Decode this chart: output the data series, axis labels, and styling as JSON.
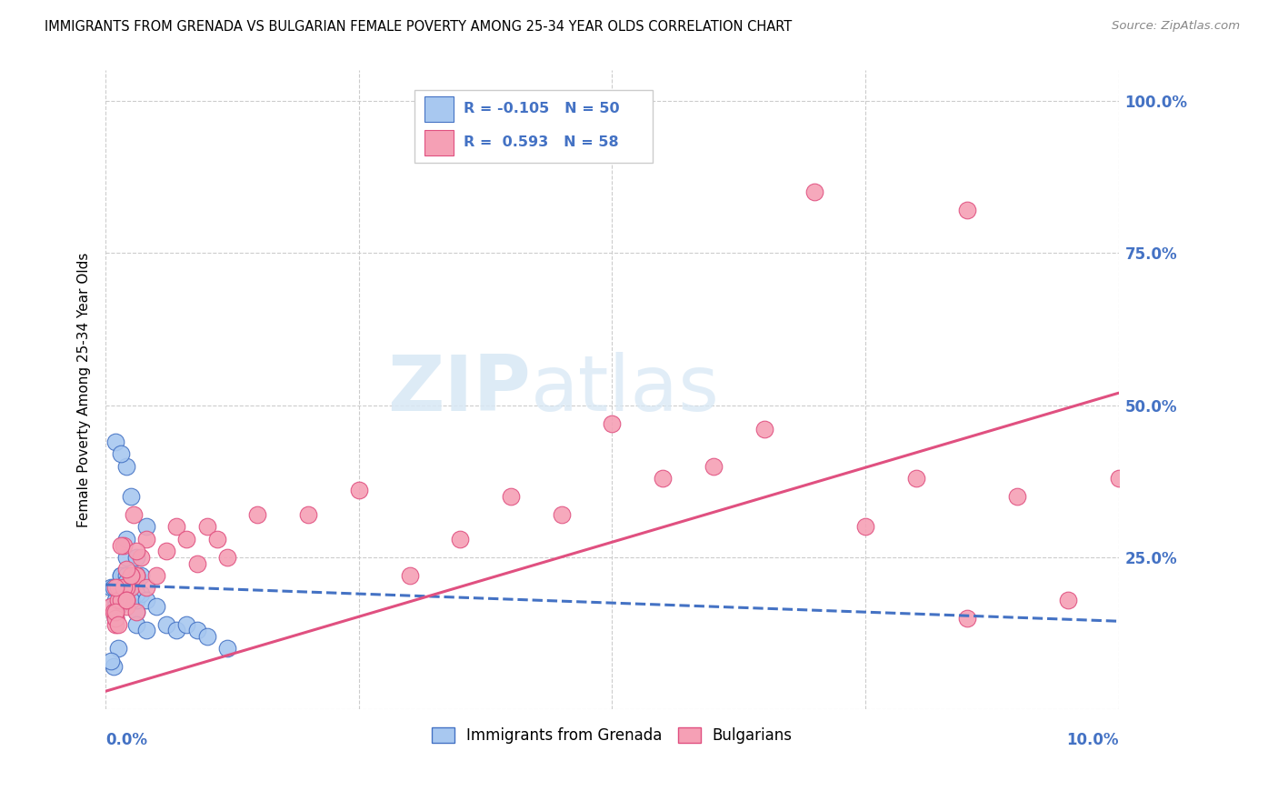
{
  "title": "IMMIGRANTS FROM GRENADA VS BULGARIAN FEMALE POVERTY AMONG 25-34 YEAR OLDS CORRELATION CHART",
  "source": "Source: ZipAtlas.com",
  "ylabel": "Female Poverty Among 25-34 Year Olds",
  "ytick_labels": [
    "",
    "25.0%",
    "50.0%",
    "75.0%",
    "100.0%"
  ],
  "ytick_values": [
    0.0,
    0.25,
    0.5,
    0.75,
    1.0
  ],
  "xlim": [
    0.0,
    0.1
  ],
  "ylim": [
    0.0,
    1.05
  ],
  "legend1_label": "Immigrants from Grenada",
  "legend2_label": "Bulgarians",
  "R1": -0.105,
  "N1": 50,
  "R2": 0.593,
  "N2": 58,
  "color_blue": "#A8C8F0",
  "color_pink": "#F5A0B5",
  "color_blue_line": "#4472C4",
  "color_pink_line": "#E05080",
  "watermark_zip": "ZIP",
  "watermark_atlas": "atlas",
  "blue_line_x": [
    0.0,
    0.1
  ],
  "blue_line_y": [
    0.205,
    0.145
  ],
  "pink_line_x": [
    0.0,
    0.1
  ],
  "pink_line_y": [
    0.03,
    0.52
  ],
  "blue_scatter_x": [
    0.0005,
    0.001,
    0.0015,
    0.001,
    0.002,
    0.0025,
    0.002,
    0.003,
    0.0008,
    0.0012,
    0.002,
    0.0015,
    0.003,
    0.0018,
    0.001,
    0.002,
    0.003,
    0.0025,
    0.001,
    0.0035,
    0.004,
    0.0015,
    0.002,
    0.001,
    0.003,
    0.002,
    0.0018,
    0.0025,
    0.002,
    0.0015,
    0.003,
    0.0022,
    0.0035,
    0.003,
    0.0025,
    0.002,
    0.004,
    0.0012,
    0.0008,
    0.0005,
    0.002,
    0.003,
    0.004,
    0.005,
    0.006,
    0.007,
    0.008,
    0.009,
    0.01,
    0.012
  ],
  "blue_scatter_y": [
    0.2,
    0.18,
    0.22,
    0.17,
    0.25,
    0.19,
    0.22,
    0.16,
    0.2,
    0.17,
    0.22,
    0.2,
    0.18,
    0.22,
    0.16,
    0.2,
    0.14,
    0.18,
    0.15,
    0.19,
    0.3,
    0.22,
    0.4,
    0.44,
    0.25,
    0.22,
    0.2,
    0.35,
    0.28,
    0.42,
    0.21,
    0.2,
    0.22,
    0.19,
    0.18,
    0.21,
    0.13,
    0.1,
    0.07,
    0.08,
    0.2,
    0.22,
    0.18,
    0.17,
    0.14,
    0.13,
    0.14,
    0.13,
    0.12,
    0.1
  ],
  "pink_scatter_x": [
    0.0005,
    0.001,
    0.0012,
    0.001,
    0.002,
    0.0025,
    0.002,
    0.003,
    0.0008,
    0.0012,
    0.002,
    0.0015,
    0.003,
    0.0018,
    0.001,
    0.002,
    0.003,
    0.0025,
    0.001,
    0.0035,
    0.004,
    0.0018,
    0.0025,
    0.001,
    0.003,
    0.002,
    0.0015,
    0.0028,
    0.002,
    0.0012,
    0.004,
    0.005,
    0.006,
    0.007,
    0.008,
    0.009,
    0.01,
    0.011,
    0.012,
    0.015,
    0.02,
    0.025,
    0.03,
    0.035,
    0.04,
    0.045,
    0.05,
    0.055,
    0.06,
    0.065,
    0.07,
    0.075,
    0.08,
    0.085,
    0.09,
    0.095,
    0.1,
    0.085
  ],
  "pink_scatter_y": [
    0.17,
    0.15,
    0.2,
    0.14,
    0.18,
    0.2,
    0.17,
    0.22,
    0.16,
    0.18,
    0.2,
    0.18,
    0.22,
    0.2,
    0.15,
    0.18,
    0.16,
    0.22,
    0.2,
    0.25,
    0.28,
    0.27,
    0.22,
    0.16,
    0.26,
    0.23,
    0.27,
    0.32,
    0.18,
    0.14,
    0.2,
    0.22,
    0.26,
    0.3,
    0.28,
    0.24,
    0.3,
    0.28,
    0.25,
    0.32,
    0.32,
    0.36,
    0.22,
    0.28,
    0.35,
    0.32,
    0.47,
    0.38,
    0.4,
    0.46,
    0.85,
    0.3,
    0.38,
    0.82,
    0.35,
    0.18,
    0.38,
    0.15
  ]
}
